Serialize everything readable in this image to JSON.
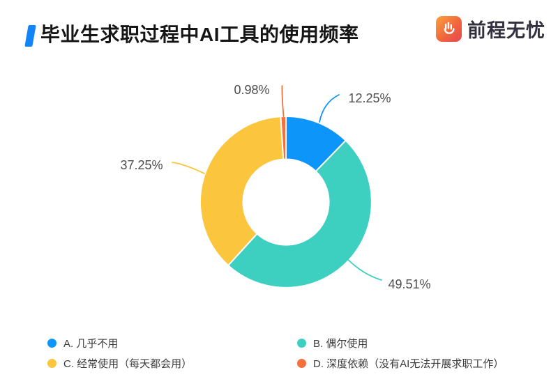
{
  "header": {
    "title": "毕业生求职过程中AI工具的使用频率",
    "accent_color": "#1184f7",
    "brand": {
      "name": "前程无忧",
      "name_color": "#33303f",
      "icon": "hand-logo-icon",
      "icon_gradient_start": "#f9a23a",
      "icon_gradient_end": "#e8454f"
    }
  },
  "chart_data": {
    "type": "pie",
    "subtype": "donut",
    "title": "毕业生求职过程中AI工具的使用频率",
    "unit": "%",
    "start_angle_deg": 0,
    "direction": "clockwise",
    "inner_radius_ratio": 0.5,
    "legend_position": "bottom",
    "background": "#ffffff",
    "segments": [
      {
        "id": "A",
        "label": "A. 几乎不用",
        "value": 12.25,
        "display": "12.25%",
        "color": "#0e95fa"
      },
      {
        "id": "B",
        "label": "B. 偶尔使用",
        "value": 49.51,
        "display": "49.51%",
        "color": "#3dcfc0"
      },
      {
        "id": "C",
        "label": "C. 经常使用（每天都会用）",
        "value": 37.25,
        "display": "37.25%",
        "color": "#fbc53d"
      },
      {
        "id": "D",
        "label": "D. 深度依赖（没有AI无法开展求职工作）",
        "value": 0.98,
        "display": "0.98%",
        "color": "#f4703d"
      }
    ]
  }
}
